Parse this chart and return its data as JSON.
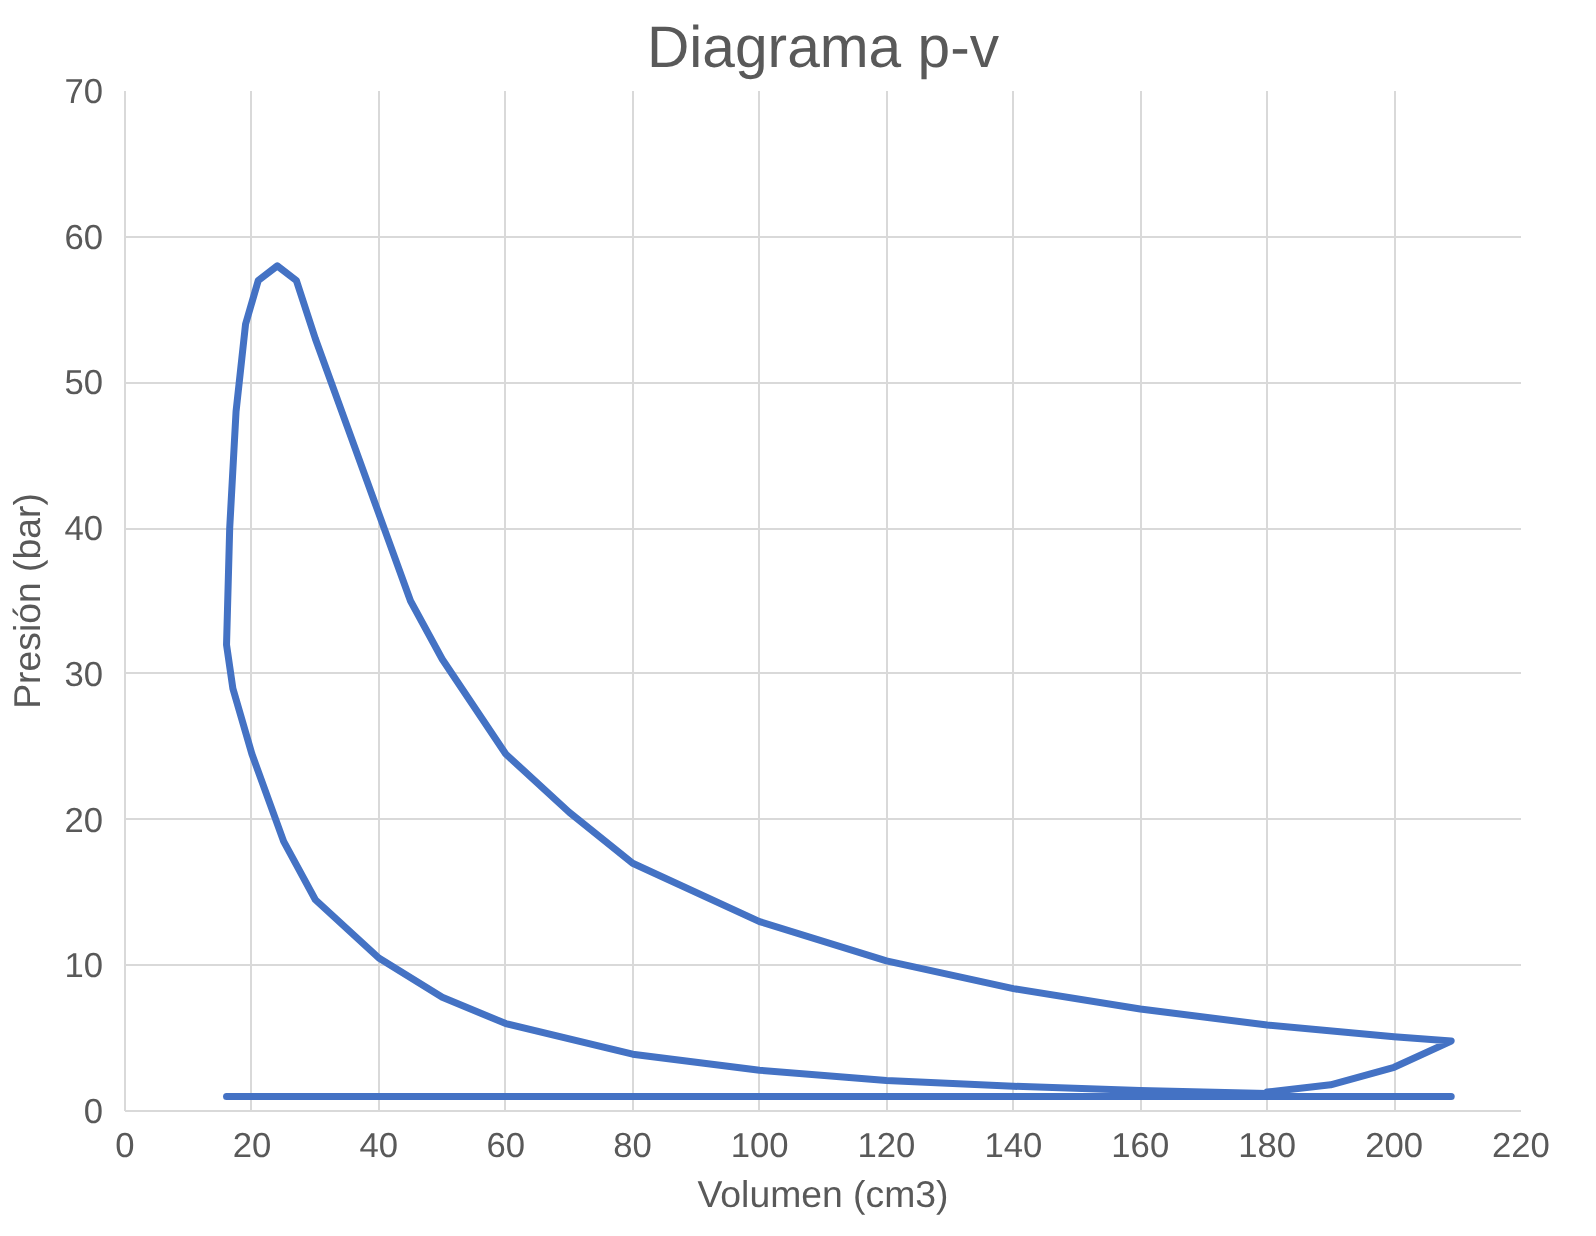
{
  "chart_data": {
    "type": "line",
    "title": "Diagrama p-v",
    "xlabel": "Volumen (cm3)",
    "ylabel": "Presión (bar)",
    "xlim": [
      0,
      220
    ],
    "xticks": [
      0,
      20,
      40,
      60,
      80,
      100,
      120,
      140,
      160,
      180,
      200,
      220
    ],
    "ylim": [
      0,
      70
    ],
    "yticks": [
      0,
      10,
      20,
      30,
      40,
      50,
      60,
      70
    ],
    "grid": true,
    "marker": "none",
    "line_style": "solid",
    "series": [
      {
        "color": "#4472c4",
        "x": [
          180,
          160,
          140,
          120,
          100,
          80,
          60,
          50,
          40,
          30,
          25,
          20,
          17,
          16,
          16.5,
          17.5,
          19,
          21,
          24,
          27,
          30,
          35,
          40,
          45,
          50,
          60,
          70,
          80,
          100,
          120,
          140,
          160,
          180,
          200,
          209,
          200,
          190,
          180
        ],
        "values": [
          1.2,
          1.4,
          1.7,
          2.1,
          2.8,
          3.9,
          6,
          7.8,
          10.5,
          14.5,
          18.5,
          24.5,
          29,
          32,
          40,
          48,
          54,
          57,
          58,
          57,
          53,
          47,
          41,
          35,
          31,
          24.5,
          20.5,
          17,
          13,
          10.3,
          8.4,
          7,
          5.9,
          5.1,
          4.8,
          3,
          1.8,
          1.3
        ]
      },
      {
        "color": "#4472c4",
        "x": [
          16,
          209
        ],
        "values": [
          1,
          1
        ]
      }
    ]
  }
}
